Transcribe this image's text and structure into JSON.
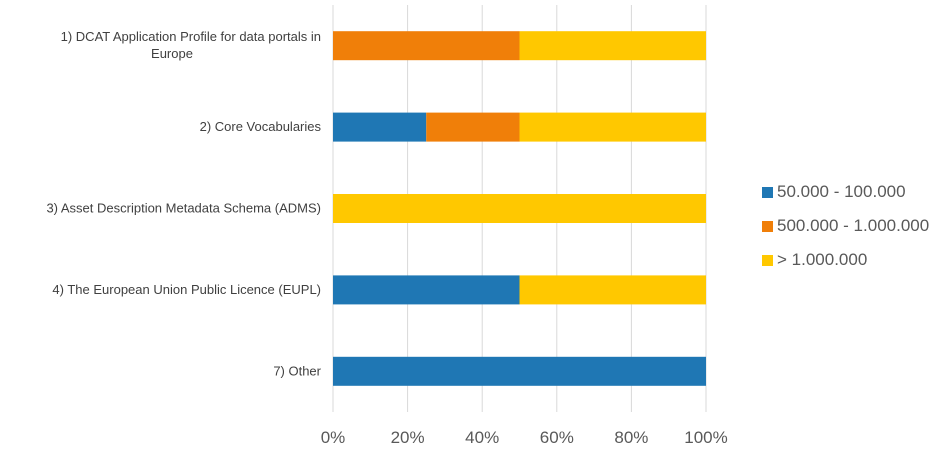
{
  "chart_data": {
    "type": "bar",
    "orientation": "horizontal",
    "stacked": true,
    "percent_stacked": true,
    "categories": [
      "1) DCAT Application Profile for data portals in Europe",
      "2) Core Vocabularies",
      "3) Asset Description Metadata Schema (ADMS)",
      "4) The European Union Public Licence (EUPL)",
      "7) Other"
    ],
    "category_label_lines": [
      [
        "1) DCAT Application Profile for data portals in",
        "Europe"
      ],
      [
        "2) Core Vocabularies"
      ],
      [
        "3) Asset Description Metadata Schema (ADMS)"
      ],
      [
        "4) The European Union Public Licence (EUPL)"
      ],
      [
        "7) Other"
      ]
    ],
    "series": [
      {
        "name": "50.000 - 100.000",
        "color": "#1F77B4",
        "values": [
          0,
          25,
          0,
          50,
          100
        ]
      },
      {
        "name": "500.000 - 1.000.000",
        "color": "#F07F09",
        "values": [
          50,
          25,
          0,
          0,
          0
        ]
      },
      {
        "name": "> 1.000.000",
        "color": "#FFC800",
        "values": [
          50,
          50,
          100,
          50,
          0
        ]
      }
    ],
    "xlim": [
      0,
      100
    ],
    "x_ticks": [
      "0%",
      "20%",
      "40%",
      "60%",
      "80%",
      "100%"
    ],
    "grid": "vertical",
    "legend_position": "right",
    "title": "",
    "xlabel": "",
    "ylabel": ""
  }
}
